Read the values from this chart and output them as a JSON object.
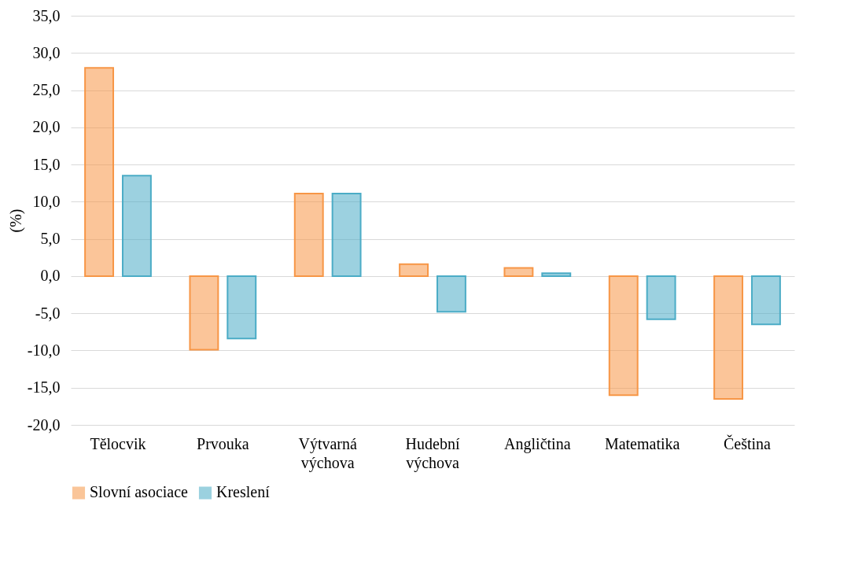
{
  "chart_data": {
    "type": "bar",
    "ylabel": "(%)",
    "categories": [
      "Tělocvik",
      "Prvouka",
      "Výtvarná výchova",
      "Hudební výchova",
      "Angličtina",
      "Matematika",
      "Čeština"
    ],
    "series": [
      {
        "name": "Slovní asociace",
        "color": "#f79646",
        "values": [
          28.0,
          -9.9,
          11.1,
          1.6,
          1.1,
          -16.0,
          -16.5
        ]
      },
      {
        "name": "Kreslení",
        "color": "#4bacc6",
        "values": [
          13.5,
          -8.4,
          11.1,
          -4.8,
          0.4,
          -5.8,
          -6.5
        ]
      }
    ],
    "ylim": [
      -20,
      35
    ],
    "yticks": [
      {
        "value": -20,
        "label": "-20,0"
      },
      {
        "value": -15,
        "label": "-15,0"
      },
      {
        "value": -10,
        "label": "-10,0"
      },
      {
        "value": -5,
        "label": "-5,0"
      },
      {
        "value": 0,
        "label": "0,0"
      },
      {
        "value": 5,
        "label": "5,0"
      },
      {
        "value": 10,
        "label": "10,0"
      },
      {
        "value": 15,
        "label": "15,0"
      },
      {
        "value": 20,
        "label": "20,0"
      },
      {
        "value": 25,
        "label": "25,0"
      },
      {
        "value": 30,
        "label": "30,0"
      },
      {
        "value": 35,
        "label": "35,0"
      }
    ],
    "grid": "y",
    "legend": "bottom"
  }
}
